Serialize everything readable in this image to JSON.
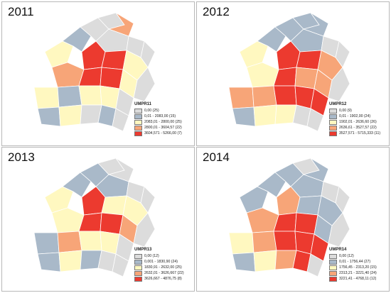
{
  "colors": {
    "c0": "#dcdcdc",
    "c1": "#a9b9c9",
    "c2": "#fff8c0",
    "c3": "#f7a578",
    "c4": "#ec3a2f",
    "border": "#ffffff"
  },
  "panels": [
    {
      "year": "2011",
      "legend_title": "UMPR11",
      "classes": [
        {
          "label": "0,00 (25)"
        },
        {
          "label": "0,01 - 2083,00 (15)"
        },
        {
          "label": "2083,01 - 2800,00 (25)"
        },
        {
          "label": "2800,01 - 3604,57 (22)"
        },
        {
          "label": "3604,571 - 5266,00 (7)"
        }
      ]
    },
    {
      "year": "2012",
      "legend_title": "UMPR12",
      "classes": [
        {
          "label": "0,00 (9)"
        },
        {
          "label": "0,01 - 1902,00 (24)"
        },
        {
          "label": "1902,01 - 2636,60 (26)"
        },
        {
          "label": "2636,61 - 3527,57 (22)"
        },
        {
          "label": "3527,571 - 5715,333 (11)"
        }
      ]
    },
    {
      "year": "2013",
      "legend_title": "UMPR13",
      "classes": [
        {
          "label": "0,00 (12)"
        },
        {
          "label": "0,001 - 1830,90 (24)"
        },
        {
          "label": "1830,91 - 2632,00 (25)"
        },
        {
          "label": "2632,01 - 3626,667 (22)"
        },
        {
          "label": "3626,667 - 4876,75 (8)"
        }
      ]
    },
    {
      "year": "2014",
      "legend_title": "UMPR14",
      "classes": [
        {
          "label": "0,00 (12)"
        },
        {
          "label": "0,01 - 1756,44 (27)"
        },
        {
          "label": "1756,45 - 2313,20 (15)"
        },
        {
          "label": "2313,21 - 3221,40 (24)"
        },
        {
          "label": "3221,41 - 4768,11 (12)"
        }
      ]
    }
  ]
}
